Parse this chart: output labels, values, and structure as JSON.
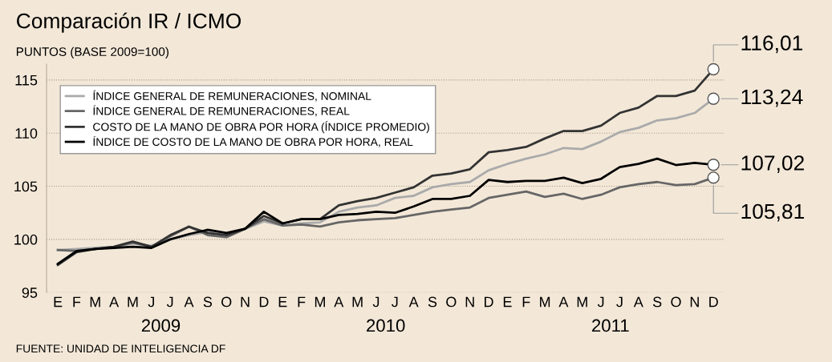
{
  "chart_data": {
    "type": "line",
    "title": "Comparación IR / ICMO",
    "subtitle": "PUNTOS (BASE 2009=100)",
    "categories": [
      "E",
      "F",
      "M",
      "A",
      "M",
      "J",
      "J",
      "A",
      "S",
      "O",
      "N",
      "D",
      "E",
      "F",
      "M",
      "A",
      "M",
      "J",
      "J",
      "A",
      "S",
      "O",
      "N",
      "D",
      "E",
      "F",
      "M",
      "A",
      "M",
      "J",
      "J",
      "A",
      "S",
      "O",
      "N",
      "D"
    ],
    "series": [
      {
        "name": "ÍNDICE GENERAL DE REMUNERACIONES, NOMINAL",
        "color": "#aaaaaa",
        "values": [
          99.0,
          99.1,
          99.2,
          99.3,
          99.6,
          99.4,
          100.0,
          100.4,
          100.7,
          100.5,
          101.0,
          101.7,
          101.3,
          101.5,
          101.6,
          102.6,
          103.0,
          103.2,
          103.9,
          104.1,
          104.9,
          105.2,
          105.4,
          106.5,
          107.1,
          107.6,
          108.0,
          108.6,
          108.5,
          109.2,
          110.1,
          110.5,
          111.2,
          111.4,
          111.9,
          113.24
        ],
        "value_labels": [
          null,
          null,
          null,
          null,
          null,
          null,
          null,
          null,
          null,
          null,
          null,
          null,
          null,
          null,
          null,
          null,
          null,
          null,
          null,
          null,
          null,
          null,
          null,
          null,
          null,
          null,
          null,
          null,
          null,
          null,
          null,
          null,
          null,
          null,
          null,
          "113,24"
        ]
      },
      {
        "name": "ÍNDICE GENERAL DE REMUNERACIONES, REAL",
        "color": "#666666",
        "values": [
          99.0,
          98.9,
          99.1,
          99.3,
          99.7,
          99.3,
          100.3,
          101.2,
          100.4,
          100.2,
          101.0,
          101.9,
          101.3,
          101.4,
          101.2,
          101.6,
          101.8,
          101.9,
          102.0,
          102.3,
          102.6,
          102.8,
          103.0,
          103.9,
          104.2,
          104.5,
          104.0,
          104.3,
          103.8,
          104.2,
          104.9,
          105.2,
          105.4,
          105.1,
          105.2,
          105.81
        ],
        "value_labels": [
          null,
          null,
          null,
          null,
          null,
          null,
          null,
          null,
          null,
          null,
          null,
          null,
          null,
          null,
          null,
          null,
          null,
          null,
          null,
          null,
          null,
          null,
          null,
          null,
          null,
          null,
          null,
          null,
          null,
          null,
          null,
          null,
          null,
          null,
          null,
          "105,81"
        ]
      },
      {
        "name": "COSTO DE LA MANO DE OBRA POR HORA (ÍNDICE PROMEDIO)",
        "color": "#333333",
        "values": [
          97.6,
          98.8,
          99.1,
          99.3,
          99.8,
          99.3,
          100.4,
          101.2,
          100.6,
          100.4,
          101.0,
          102.2,
          101.5,
          101.9,
          101.9,
          103.2,
          103.6,
          103.9,
          104.4,
          104.9,
          106.0,
          106.2,
          106.6,
          108.2,
          108.4,
          108.7,
          109.5,
          110.2,
          110.2,
          110.7,
          111.9,
          112.4,
          113.5,
          113.5,
          114.0,
          116.01
        ],
        "value_labels": [
          null,
          null,
          null,
          null,
          null,
          null,
          null,
          null,
          null,
          null,
          null,
          null,
          null,
          null,
          null,
          null,
          null,
          null,
          null,
          null,
          null,
          null,
          null,
          null,
          null,
          null,
          null,
          null,
          null,
          null,
          null,
          null,
          null,
          null,
          null,
          "116,01"
        ]
      },
      {
        "name": "ÍNDICE DE COSTO DE LA MANO DE OBRA POR HORA, REAL",
        "color": "#000000",
        "values": [
          97.7,
          98.9,
          99.1,
          99.2,
          99.3,
          99.2,
          100.0,
          100.5,
          100.9,
          100.6,
          101.0,
          102.6,
          101.5,
          101.9,
          101.9,
          102.3,
          102.4,
          102.6,
          102.5,
          103.1,
          103.8,
          103.8,
          104.1,
          105.6,
          105.4,
          105.5,
          105.5,
          105.8,
          105.3,
          105.7,
          106.8,
          107.1,
          107.6,
          107.0,
          107.2,
          107.02
        ],
        "value_labels": [
          null,
          null,
          null,
          null,
          null,
          null,
          null,
          null,
          null,
          null,
          null,
          null,
          null,
          null,
          null,
          null,
          null,
          null,
          null,
          null,
          null,
          null,
          null,
          null,
          null,
          null,
          null,
          null,
          null,
          null,
          null,
          null,
          null,
          null,
          null,
          "107,02"
        ]
      }
    ],
    "ylim": [
      95,
      116.5
    ],
    "yticks": [
      95,
      100,
      105,
      110,
      115
    ],
    "grid": "y",
    "legend": "top left",
    "marker": "none",
    "line_style": "solid",
    "annotations": [
      "2009",
      "2010",
      "2011",
      "FUENTE: UNIDAD DE INTELIGENCIA DF"
    ]
  }
}
